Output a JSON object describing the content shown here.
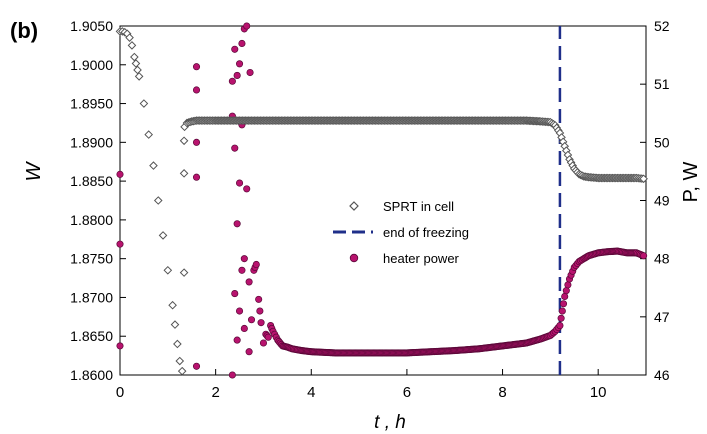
{
  "panel_label": "(b)",
  "chart_data": {
    "type": "scatter",
    "xlabel": "t , h",
    "ylabel_left": "W",
    "ylabel_right": "P, W",
    "xlim": [
      0,
      11
    ],
    "ylim_left": [
      1.86,
      1.905
    ],
    "ylim_right": [
      46,
      52
    ],
    "x_ticks": [
      "0",
      "2",
      "4",
      "6",
      "8",
      "10"
    ],
    "x_tick_values": [
      0,
      2,
      4,
      6,
      8,
      10
    ],
    "y_left_ticks": [
      "1.8600",
      "1.8650",
      "1.8700",
      "1.8750",
      "1.8800",
      "1.8850",
      "1.8900",
      "1.8950",
      "1.9000",
      "1.9050"
    ],
    "y_left_tick_values": [
      1.86,
      1.865,
      1.87,
      1.875,
      1.88,
      1.885,
      1.89,
      1.895,
      1.9,
      1.905
    ],
    "y_right_ticks": [
      "46",
      "47",
      "48",
      "49",
      "50",
      "51",
      "52"
    ],
    "y_right_tick_values": [
      46,
      47,
      48,
      49,
      50,
      51,
      52
    ],
    "grid": false,
    "legend_position": "center",
    "colors": {
      "sprt": "#555555",
      "freeze_line": "#1f2f8a",
      "heater": "#b8136e",
      "heater_edge": "#5a0838"
    },
    "series": [
      {
        "name": "SPRT in cell",
        "axis": "left",
        "marker": "diamond",
        "x": [
          0.0,
          0.05,
          0.1,
          0.15,
          0.2,
          0.25,
          0.3,
          0.4,
          0.5,
          0.6,
          0.7,
          0.8,
          0.9,
          1.0,
          1.1,
          1.15,
          1.2,
          1.25,
          1.3,
          1.34,
          1.34,
          1.34,
          1.35,
          1.4,
          1.5,
          1.6,
          1.8,
          2.0,
          2.5,
          3.0,
          3.5,
          4.0,
          4.5,
          5.0,
          5.5,
          6.0,
          6.5,
          7.0,
          7.5,
          8.0,
          8.5,
          8.8,
          9.0,
          9.1,
          9.2,
          9.3,
          9.4,
          9.5,
          9.6,
          9.7,
          9.8,
          10.0,
          10.2,
          10.4,
          10.6,
          10.8,
          10.95
        ],
        "y": [
          1.9043,
          1.9043,
          1.9042,
          1.904,
          1.9035,
          1.9025,
          1.901,
          1.8985,
          1.895,
          1.891,
          1.887,
          1.8825,
          1.878,
          1.8735,
          1.869,
          1.8665,
          1.864,
          1.8618,
          1.8605,
          1.8732,
          1.886,
          1.8902,
          1.892,
          1.8925,
          1.8927,
          1.8928,
          1.8928,
          1.8928,
          1.8928,
          1.8928,
          1.8928,
          1.8928,
          1.8928,
          1.8928,
          1.8928,
          1.8928,
          1.8928,
          1.8928,
          1.8928,
          1.8928,
          1.8928,
          1.8927,
          1.8926,
          1.8922,
          1.8912,
          1.8895,
          1.8878,
          1.8866,
          1.8859,
          1.8856,
          1.8855,
          1.8854,
          1.8854,
          1.8854,
          1.8854,
          1.8854,
          1.8853
        ]
      },
      {
        "name": "end of freezing",
        "axis": "left",
        "marker": "vline",
        "x": [
          9.2,
          9.2
        ],
        "y": [
          1.86,
          1.905
        ]
      },
      {
        "name": "heater power",
        "axis": "right",
        "marker": "circle",
        "x": [
          0.0,
          0.0,
          0.0,
          1.6,
          1.6,
          1.6,
          1.6,
          1.6,
          2.35,
          2.35,
          2.35,
          2.4,
          2.4,
          2.4,
          2.45,
          2.45,
          2.45,
          2.5,
          2.5,
          2.5,
          2.55,
          2.55,
          2.55,
          2.6,
          2.6,
          2.6,
          2.65,
          2.65,
          2.7,
          2.7,
          2.72,
          2.75,
          2.8,
          2.85,
          2.9,
          2.95,
          3.0,
          3.05,
          3.1,
          3.15,
          3.2,
          3.3,
          3.4,
          3.5,
          3.6,
          3.8,
          4.0,
          4.5,
          5.0,
          5.5,
          6.0,
          6.5,
          7.0,
          7.5,
          8.0,
          8.5,
          8.8,
          9.0,
          9.1,
          9.2,
          9.25,
          9.3,
          9.4,
          9.5,
          9.6,
          9.7,
          9.8,
          10.0,
          10.2,
          10.4,
          10.6,
          10.8,
          10.95
        ],
        "y": [
          49.45,
          48.25,
          46.5,
          51.3,
          50.9,
          50.0,
          49.4,
          46.15,
          51.05,
          50.45,
          46.0,
          51.6,
          49.9,
          47.4,
          51.15,
          48.6,
          46.6,
          51.35,
          49.3,
          47.1,
          51.7,
          50.3,
          47.8,
          51.95,
          48.0,
          46.8,
          52.0,
          49.2,
          47.6,
          46.4,
          51.2,
          46.95,
          47.8,
          47.9,
          47.3,
          46.9,
          46.55,
          46.7,
          46.65,
          46.85,
          46.75,
          46.6,
          46.5,
          46.48,
          46.45,
          46.42,
          46.4,
          46.38,
          46.38,
          46.38,
          46.38,
          46.4,
          46.42,
          46.45,
          46.5,
          46.55,
          46.62,
          46.68,
          46.75,
          46.85,
          47.1,
          47.35,
          47.65,
          47.85,
          47.95,
          48.0,
          48.05,
          48.1,
          48.12,
          48.13,
          48.1,
          48.1,
          48.05
        ]
      }
    ]
  }
}
